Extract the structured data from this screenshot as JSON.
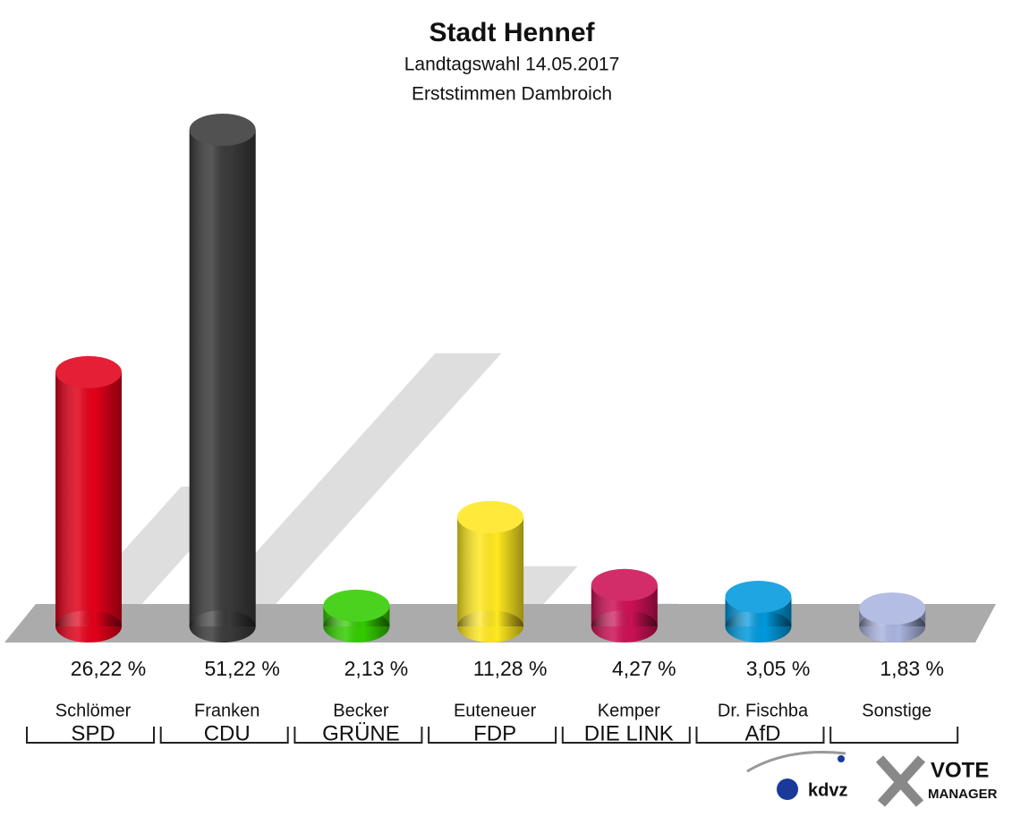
{
  "chart_data": {
    "type": "bar",
    "title": "Stadt Hennef",
    "subtitle": [
      "Landtagswahl 14.05.2017",
      "Erststimmen Dambroich"
    ],
    "candidates": [
      "Schlömer",
      "Franken",
      "Becker",
      "Euteneuer",
      "Kemper",
      "Dr. Fischba",
      "Sonstige"
    ],
    "categories": [
      "SPD",
      "CDU",
      "GRÜNE",
      "FDP",
      "DIE LINK",
      "AfD",
      null
    ],
    "values": [
      26.22,
      51.22,
      2.13,
      11.28,
      4.27,
      3.05,
      1.83
    ],
    "value_labels": [
      "26,22 %",
      "51,22 %",
      "2,13 %",
      "11,28 %",
      "4,27 %",
      "3,05 %",
      "1,83 %"
    ],
    "colors": [
      "#e2001a",
      "#3a3a3a",
      "#33cc00",
      "#ffe820",
      "#cc1155",
      "#0099dd",
      "#aab4e0"
    ]
  },
  "logo": {
    "brand": "kdvz",
    "product": [
      "VOTE",
      "MANAGER"
    ]
  }
}
